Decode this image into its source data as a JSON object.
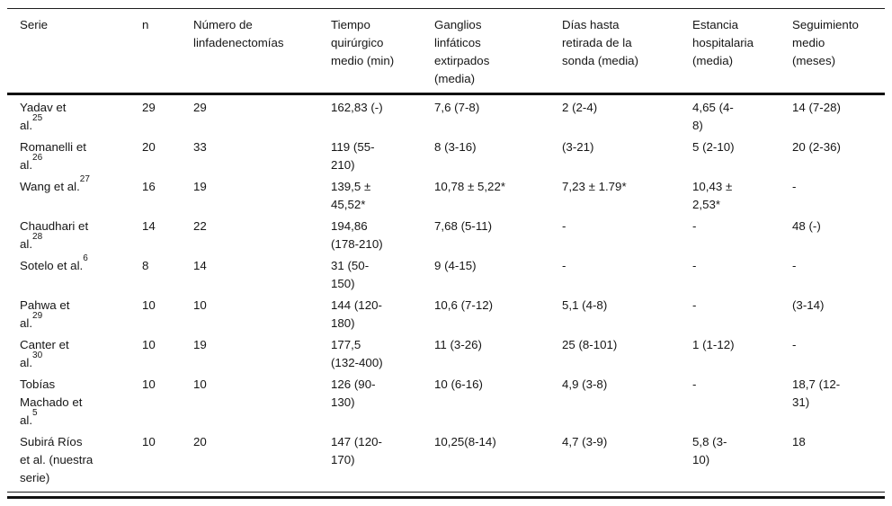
{
  "table": {
    "columns": [
      {
        "id": "serie",
        "label": "Serie"
      },
      {
        "id": "n",
        "label": "n"
      },
      {
        "id": "numero-linfadenectomias",
        "label": "Número de\nlinfadenectomías"
      },
      {
        "id": "tiempo-quirurgico",
        "label": "Tiempo\nquirúrgico\nmedio (min)"
      },
      {
        "id": "ganglios-extirpados",
        "label": "Ganglios\nlinfáticos\nextirpados\n(media)"
      },
      {
        "id": "dias-retirada-sonda",
        "label": "Días hasta\nretirada de la\nsonda (media)"
      },
      {
        "id": "estancia-hospitalaria",
        "label": "Estancia\nhospitalaria\n(media)"
      },
      {
        "id": "seguimiento-medio",
        "label": "Seguimiento\nmedio\n(meses)"
      }
    ],
    "rows": [
      {
        "serie": {
          "text": "Yadav et\nal.",
          "sup": "25"
        },
        "values": [
          "29",
          "29",
          "162,83 (-)",
          "7,6 (7-8)",
          "2 (2-4)",
          "4,65 (4-\n8)",
          "14 (7-28)"
        ]
      },
      {
        "serie": {
          "text": "Romanelli et\nal.",
          "sup": "26"
        },
        "values": [
          "20",
          "33",
          "119 (55-\n210)",
          "8 (3-16)",
          "(3-21)",
          "5 (2-10)",
          "20 (2-36)"
        ]
      },
      {
        "serie": {
          "text": "Wang et al.",
          "sup": "27"
        },
        "values": [
          "16",
          "19",
          "139,5 ±\n45,52*",
          "10,78 ± 5,22*",
          "7,23 ± 1.79*",
          "10,43 ±\n2,53*",
          "-"
        ]
      },
      {
        "serie": {
          "text": "Chaudhari et\nal.",
          "sup": "28"
        },
        "values": [
          "14",
          "22",
          "194,86\n(178-210)",
          "7,68 (5-11)",
          "-",
          "-",
          "48 (-)"
        ]
      },
      {
        "serie": {
          "text": "Sotelo et al.",
          "sup": "6"
        },
        "values": [
          "8",
          "14",
          "31 (50-\n150)",
          "9 (4-15)",
          "-",
          "-",
          "-"
        ]
      },
      {
        "serie": {
          "text": "Pahwa et\nal.",
          "sup": "29"
        },
        "values": [
          "10",
          "10",
          "144 (120-\n180)",
          "10,6 (7-12)",
          "5,1 (4-8)",
          "-",
          "(3-14)"
        ]
      },
      {
        "serie": {
          "text": "Canter et\nal.",
          "sup": "30"
        },
        "values": [
          "10",
          "19",
          "177,5\n(132-400)",
          "11 (3-26)",
          "25 (8-101)",
          "1 (1-12)",
          "-"
        ]
      },
      {
        "serie": {
          "text": "Tobías\nMachado et\nal.",
          "sup": "5"
        },
        "values": [
          "10",
          "10",
          "126 (90-\n130)",
          "10 (6-16)",
          "4,9 (3-8)",
          "-",
          "18,7 (12-\n31)"
        ]
      },
      {
        "serie": {
          "text": "Subirá Ríos\net al. (nuestra\nserie)",
          "sup": ""
        },
        "values": [
          "10",
          "20",
          "147 (120-\n170)",
          "10,25(8-14)",
          "4,7 (3-9)",
          "5,8 (3-\n10)",
          "18"
        ]
      }
    ]
  }
}
